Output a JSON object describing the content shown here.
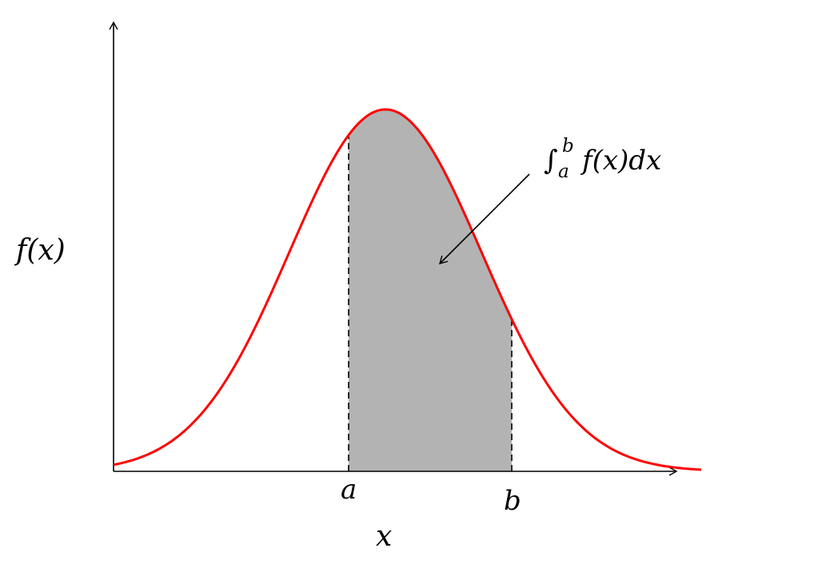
{
  "diagram": {
    "labels": {
      "y_axis": "f(x)",
      "x_axis": "x",
      "lower_limit": "a",
      "upper_limit": "b",
      "integral_sign": "∫",
      "integral_upper": "b",
      "integral_lower": "a",
      "integrand": "f(x)dx"
    },
    "colors": {
      "curve": "#ff0000",
      "shaded_area": "#b3b3b3",
      "axes": "#000000",
      "bounds": "#000000"
    },
    "styles": {
      "bounds": "dashed",
      "annotation": "arrow pointing into the shaded area"
    }
  }
}
